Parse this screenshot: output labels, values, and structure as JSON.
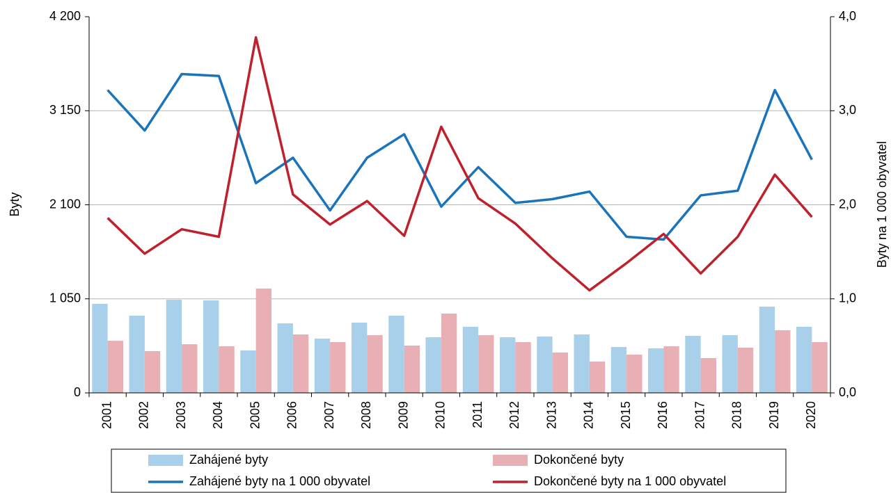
{
  "chart_data": {
    "type": "bar",
    "y_label": "Byty",
    "y2_label": "Byty na 1 000 obyvatel",
    "categories": [
      "2001",
      "2002",
      "2003",
      "2004",
      "2005",
      "2006",
      "2007",
      "2008",
      "2009",
      "2010",
      "2011",
      "2012",
      "2013",
      "2014",
      "2015",
      "2016",
      "2017",
      "2018",
      "2019",
      "2020"
    ],
    "series": [
      {
        "name": "Zahájené byty",
        "type": "bar",
        "color": "#a9d0ea",
        "values": [
          994,
          862,
          1040,
          1033,
          474,
          776,
          606,
          784,
          862,
          621,
          738,
          621,
          629,
          652,
          512,
          497,
          637,
          644,
          963,
          738
        ]
      },
      {
        "name": "Dokončené byty",
        "type": "bar",
        "color": "#e8afb5",
        "values": [
          582,
          466,
          543,
          520,
          1165,
          652,
          567,
          644,
          528,
          885,
          644,
          567,
          450,
          349,
          427,
          520,
          388,
          505,
          699,
          567
        ]
      },
      {
        "name": "Zahájené byty na 1 000 obyvatel",
        "type": "line",
        "axis": "y2",
        "color": "#1a74bb",
        "values": [
          3.22,
          2.79,
          3.39,
          3.37,
          2.23,
          2.5,
          1.94,
          2.5,
          2.75,
          1.98,
          2.4,
          2.02,
          2.06,
          2.14,
          1.66,
          1.63,
          2.1,
          2.15,
          3.22,
          2.48
        ]
      },
      {
        "name": "Dokončené byty na 1 000 obyvatel",
        "type": "line",
        "axis": "y2",
        "color": "#c0202b",
        "values": [
          1.86,
          1.48,
          1.74,
          1.66,
          3.78,
          2.11,
          1.79,
          2.04,
          1.67,
          2.83,
          2.07,
          1.8,
          1.43,
          1.09,
          1.38,
          1.69,
          1.27,
          1.66,
          2.32,
          1.87
        ]
      }
    ],
    "ylim": [
      0,
      4200
    ],
    "yticks": [
      0,
      {
        "value": 1050,
        "label": "1 050"
      },
      {
        "value": 2100,
        "label": "2 100"
      },
      {
        "value": 3150,
        "label": "3 150"
      },
      {
        "value": 4200,
        "label": "4 200"
      }
    ],
    "y2lim": [
      0,
      4
    ],
    "y2ticks": [
      {
        "value": 0,
        "label": "0,0"
      },
      {
        "value": 1,
        "label": "1,0"
      },
      {
        "value": 2,
        "label": "2,0"
      },
      {
        "value": 3,
        "label": "3,0"
      },
      {
        "value": 4,
        "label": "4,0"
      }
    ],
    "grid": true
  }
}
